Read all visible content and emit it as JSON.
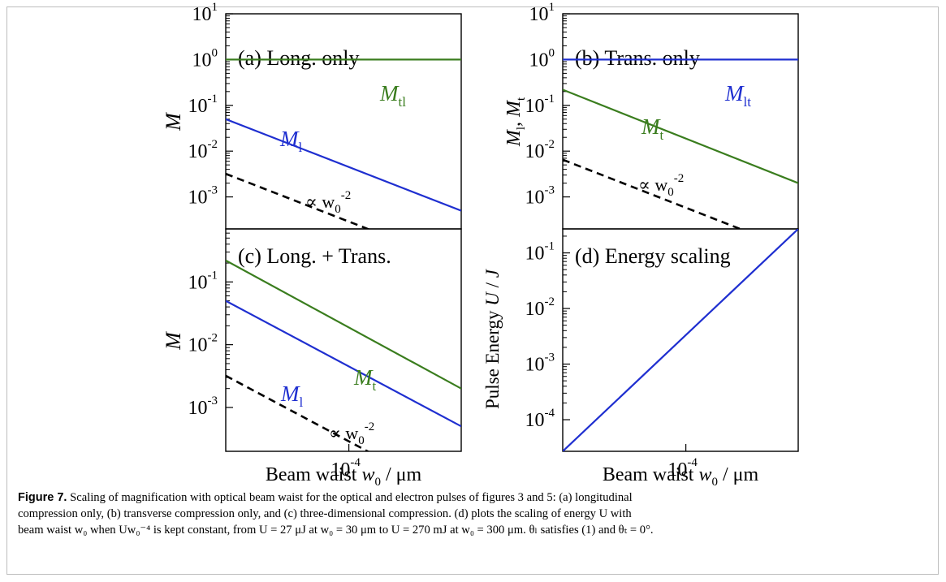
{
  "chart_data": [
    {
      "type": "line",
      "panel": "a",
      "annotation": "(a) Long. only",
      "ylabel": "M",
      "x_log": true,
      "y_log": true,
      "xlim": [
        3e-05,
        0.0003
      ],
      "ylim": [
        0.0002,
        10
      ],
      "ytick_exponents": [
        -3,
        -2,
        -1,
        0,
        1
      ],
      "series": [
        {
          "name": "M",
          "sub": "tl",
          "color": "#3a7d1e",
          "style": "solid",
          "x": [
            3e-05,
            0.0003
          ],
          "y": [
            1.0,
            1.0
          ]
        },
        {
          "name": "M",
          "sub": "l",
          "color": "#1f2fd0",
          "style": "solid",
          "x": [
            3e-05,
            0.0003
          ],
          "y": [
            0.05,
            0.0005
          ]
        },
        {
          "name": "∝ w",
          "sub": "0",
          "sup": "-2",
          "color": "#000000",
          "style": "dashed",
          "x": [
            3e-05,
            0.00019
          ],
          "y": [
            0.0032,
            8e-05
          ]
        }
      ]
    },
    {
      "type": "line",
      "panel": "b",
      "annotation": "(b) Trans. only",
      "ylabel": "M_l, M_t",
      "x_log": true,
      "y_log": true,
      "xlim": [
        3e-05,
        0.0003
      ],
      "ylim": [
        0.0002,
        10
      ],
      "ytick_exponents": [
        -3,
        -2,
        -1,
        0,
        1
      ],
      "series": [
        {
          "name": "M",
          "sub": "lt",
          "color": "#1f2fd0",
          "style": "solid",
          "x": [
            3e-05,
            0.0003
          ],
          "y": [
            1.0,
            1.0
          ]
        },
        {
          "name": "M",
          "sub": "t",
          "color": "#3a7d1e",
          "style": "solid",
          "x": [
            3e-05,
            0.0003
          ],
          "y": [
            0.22,
            0.002
          ]
        },
        {
          "name": "∝ w",
          "sub": "0",
          "sup": "-2",
          "color": "#000000",
          "style": "dashed",
          "x": [
            3e-05,
            0.00019
          ],
          "y": [
            0.0065,
            0.00016
          ]
        }
      ]
    },
    {
      "type": "line",
      "panel": "c",
      "annotation": "(c) Long. + Trans.",
      "ylabel": "M",
      "xlabel": "Beam waist w_0 / μm",
      "x_log": true,
      "y_log": true,
      "xlim": [
        3e-05,
        0.0003
      ],
      "ylim": [
        0.0002,
        0.7
      ],
      "ytick_exponents": [
        -3,
        -2,
        -1
      ],
      "xtick_exponents": [
        -4
      ],
      "series": [
        {
          "name": "M",
          "sub": "t",
          "color": "#3a7d1e",
          "style": "solid",
          "x": [
            3e-05,
            0.0003
          ],
          "y": [
            0.22,
            0.002
          ]
        },
        {
          "name": "M",
          "sub": "l",
          "color": "#1f2fd0",
          "style": "solid",
          "x": [
            3e-05,
            0.0003
          ],
          "y": [
            0.05,
            0.0005
          ]
        },
        {
          "name": "∝ w",
          "sub": "0",
          "sup": "-2",
          "color": "#000000",
          "style": "dashed",
          "x": [
            3e-05,
            0.00019
          ],
          "y": [
            0.0032,
            8e-05
          ]
        }
      ]
    },
    {
      "type": "line",
      "panel": "d",
      "annotation": "(d) Energy scaling",
      "ylabel": "Pulse Energy U / J",
      "xlabel": "Beam waist w_0 / μm",
      "x_log": true,
      "y_log": true,
      "xlim": [
        3e-05,
        0.0003
      ],
      "ylim": [
        2.7e-05,
        0.27
      ],
      "ytick_exponents": [
        -4,
        -3,
        -2,
        -1
      ],
      "xtick_exponents": [
        -4
      ],
      "series": [
        {
          "name": "U",
          "color": "#1f2fd0",
          "style": "solid",
          "x": [
            3e-05,
            0.0003
          ],
          "y": [
            2.7e-05,
            0.27
          ]
        }
      ]
    }
  ],
  "caption": {
    "label": "Figure 7.",
    "line1": "Scaling of magnification with optical beam waist for the optical and electron pulses of figures 3 and 5: (a) longitudinal",
    "line2": "compression only, (b) transverse compression only, and (c) three-dimensional compression. (d) plots the scaling of energy U with",
    "line3": "beam waist w₀ when Uw₀⁻⁴ is kept constant, from U = 27 μJ at w₀ = 30 μm to U = 270 mJ at w₀ = 300 μm. θₗ satisfies (1) and θₜ = 0°."
  }
}
